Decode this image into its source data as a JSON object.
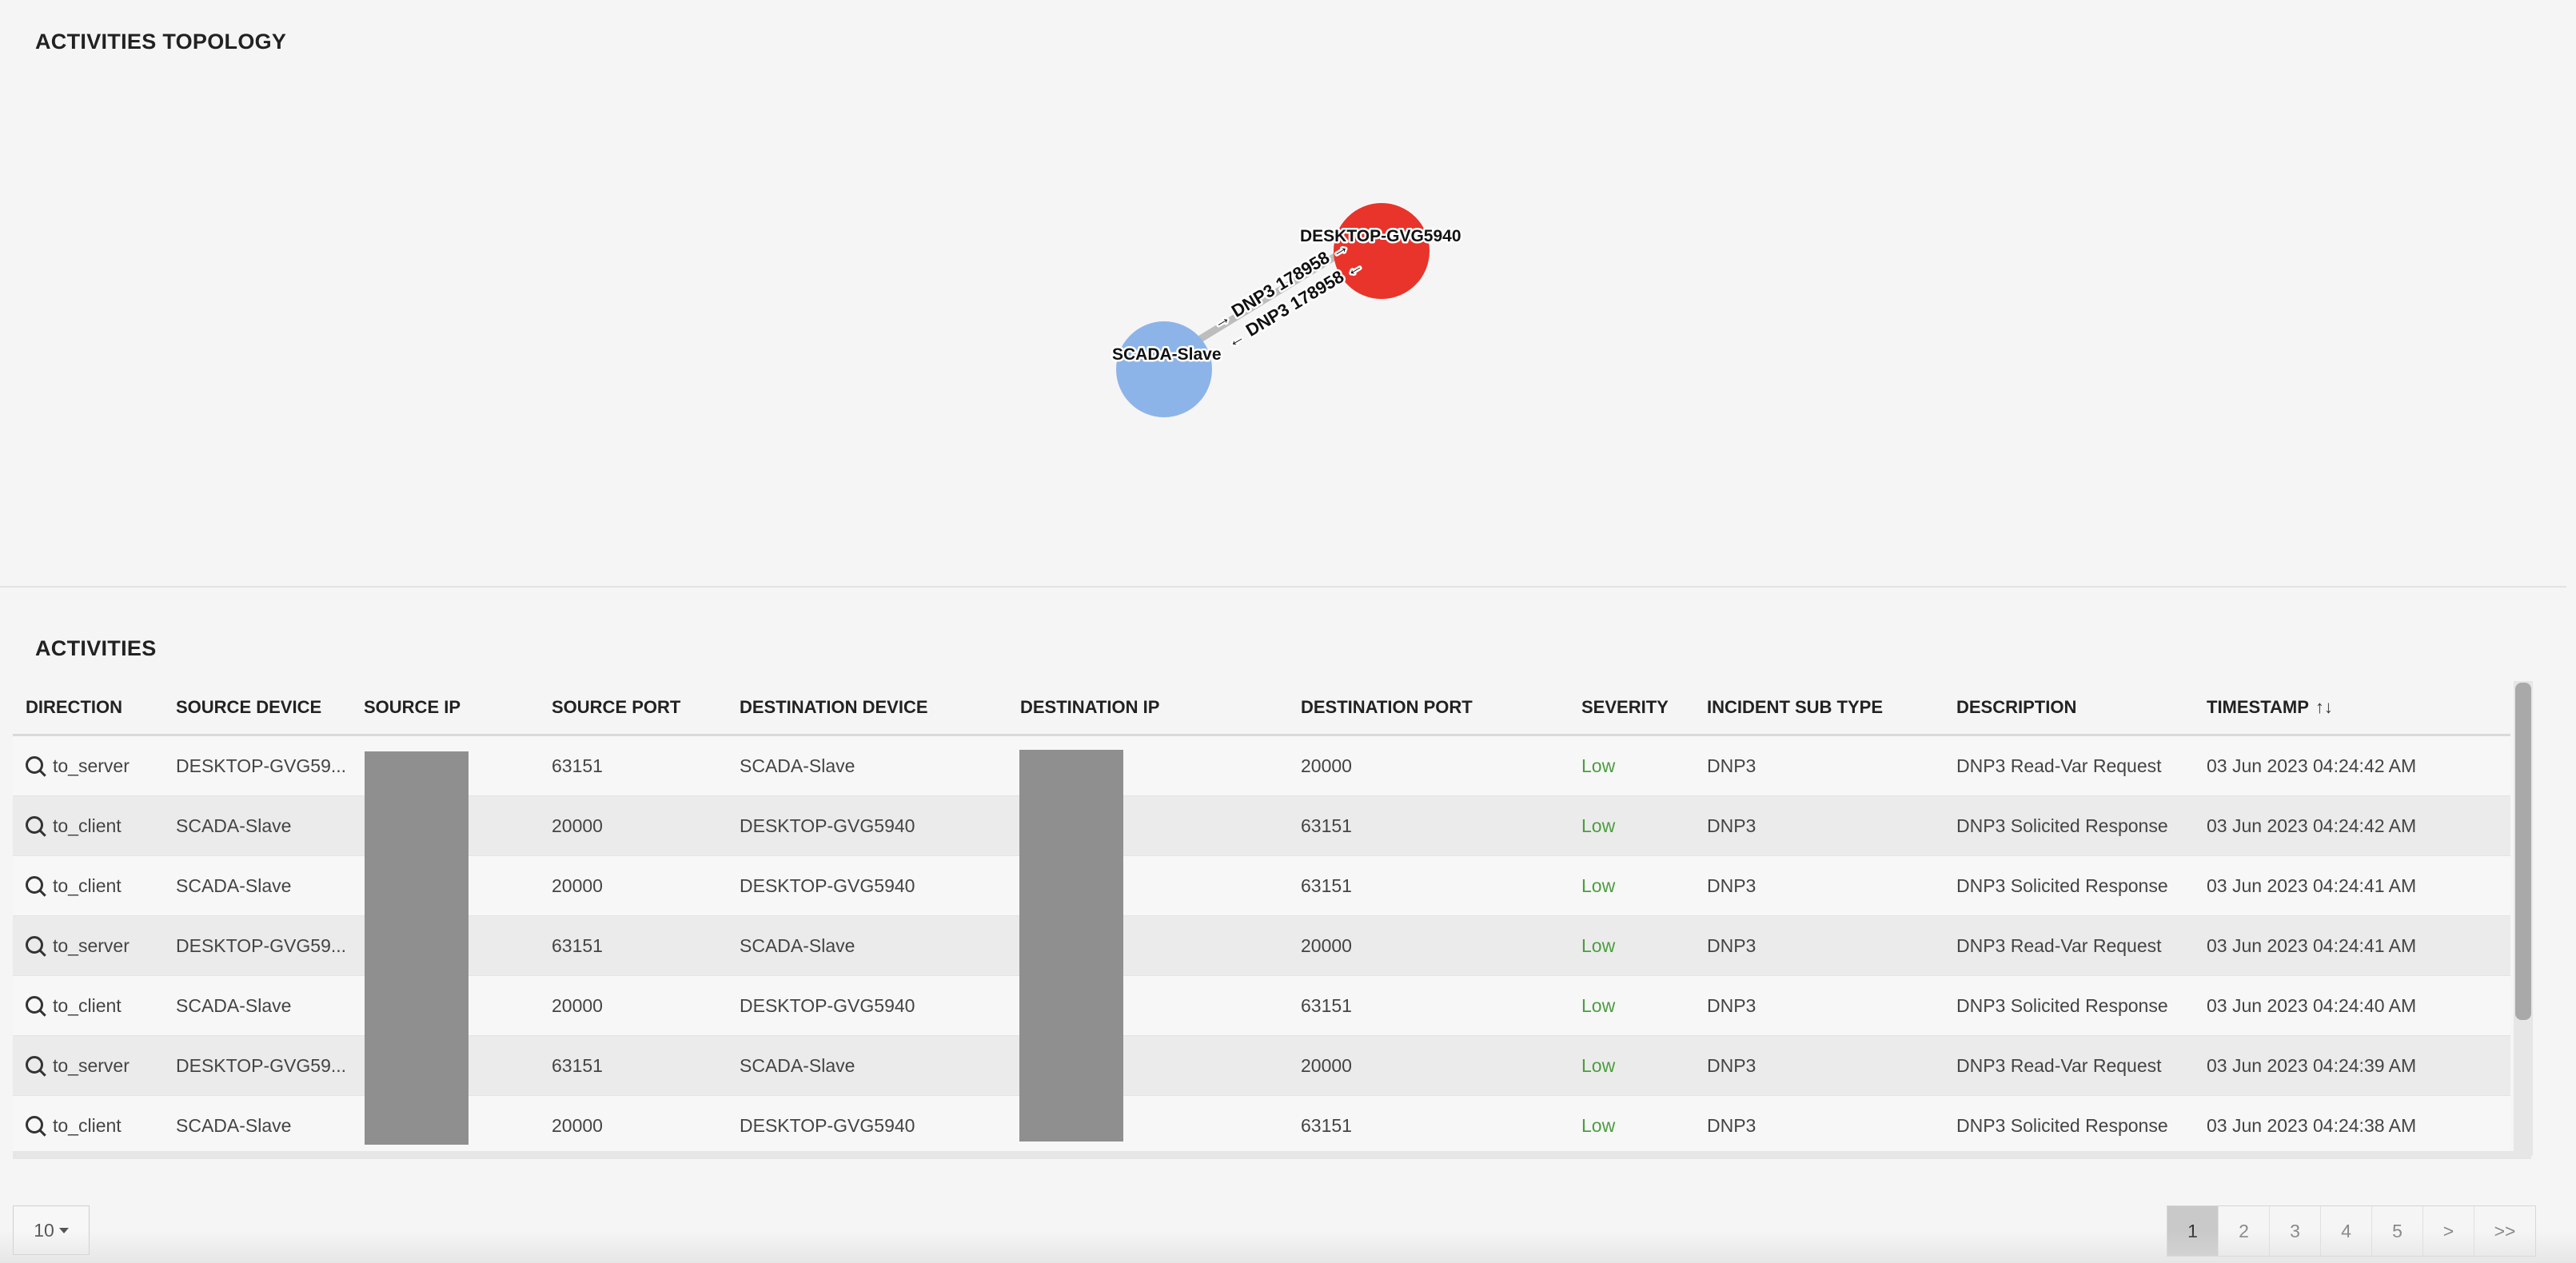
{
  "topology": {
    "title": "ACTIVITIES TOPOLOGY",
    "nodes": [
      {
        "label": "DESKTOP-GVG5940",
        "color": "#e8342a"
      },
      {
        "label": "SCADA-Slave",
        "color": "#8db4e8"
      }
    ],
    "edges": [
      {
        "label": "→ DNP3 178958 →"
      },
      {
        "label": "← DNP3 178958 ←"
      }
    ]
  },
  "activities": {
    "title": "ACTIVITIES",
    "columns": [
      "DIRECTION",
      "SOURCE DEVICE",
      "SOURCE IP",
      "SOURCE PORT",
      "DESTINATION DEVICE",
      "DESTINATION IP",
      "DESTINATION PORT",
      "SEVERITY",
      "INCIDENT SUB TYPE",
      "DESCRIPTION",
      "TIMESTAMP"
    ],
    "sort_icon": "↑↓",
    "rows": [
      [
        "to_server",
        "DESKTOP-GVG59...",
        "",
        "63151",
        "SCADA-Slave",
        "",
        "20000",
        "Low",
        "DNP3",
        "DNP3 Read-Var Request",
        "03 Jun 2023 04:24:42 AM"
      ],
      [
        "to_client",
        "SCADA-Slave",
        "",
        "20000",
        "DESKTOP-GVG5940",
        "",
        "63151",
        "Low",
        "DNP3",
        "DNP3 Solicited Response",
        "03 Jun 2023 04:24:42 AM"
      ],
      [
        "to_client",
        "SCADA-Slave",
        "",
        "20000",
        "DESKTOP-GVG5940",
        "",
        "63151",
        "Low",
        "DNP3",
        "DNP3 Solicited Response",
        "03 Jun 2023 04:24:41 AM"
      ],
      [
        "to_server",
        "DESKTOP-GVG59...",
        "",
        "63151",
        "SCADA-Slave",
        "",
        "20000",
        "Low",
        "DNP3",
        "DNP3 Read-Var Request",
        "03 Jun 2023 04:24:41 AM"
      ],
      [
        "to_client",
        "SCADA-Slave",
        "",
        "20000",
        "DESKTOP-GVG5940",
        "",
        "63151",
        "Low",
        "DNP3",
        "DNP3 Solicited Response",
        "03 Jun 2023 04:24:40 AM"
      ],
      [
        "to_server",
        "DESKTOP-GVG59...",
        "",
        "63151",
        "SCADA-Slave",
        "",
        "20000",
        "Low",
        "DNP3",
        "DNP3 Read-Var Request",
        "03 Jun 2023 04:24:39 AM"
      ],
      [
        "to_client",
        "SCADA-Slave",
        "",
        "20000",
        "DESKTOP-GVG5940",
        "",
        "63151",
        "Low",
        "DNP3",
        "DNP3 Solicited Response",
        "03 Jun 2023 04:24:38 AM"
      ]
    ],
    "severity_color": "#4a9e3e",
    "row_icon": "search-icon"
  },
  "pagination": {
    "page_size": "10",
    "pages": [
      "1",
      "2",
      "3",
      "4",
      "5",
      ">",
      ">>"
    ],
    "current": "1"
  }
}
